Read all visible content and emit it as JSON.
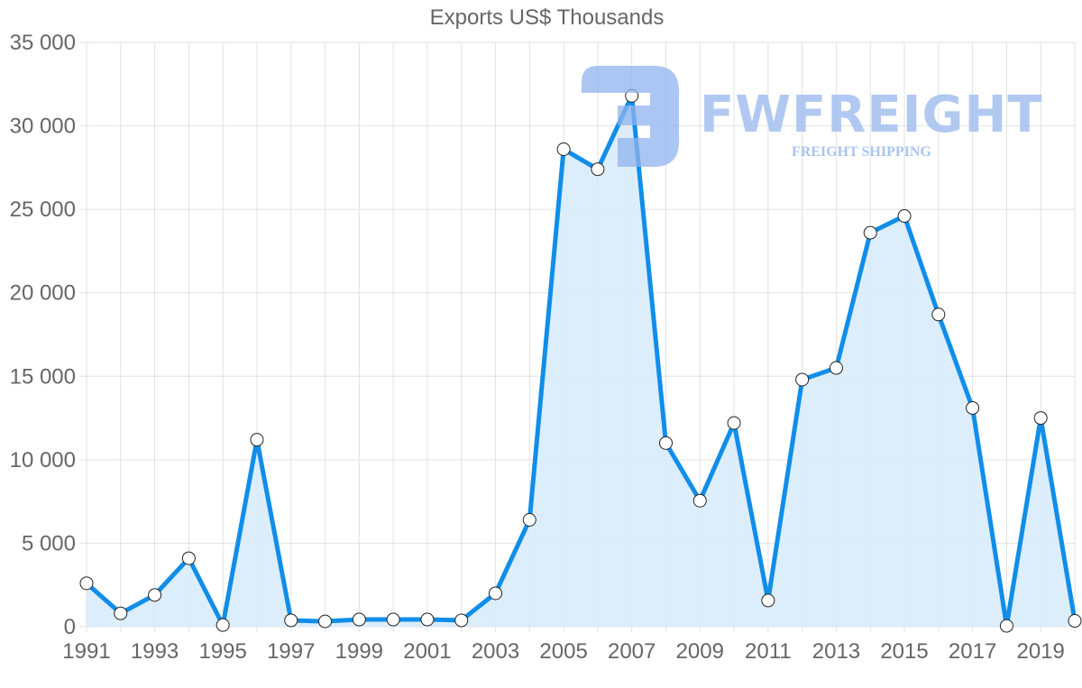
{
  "chart_data": {
    "type": "line",
    "title": "Exports US$ Thousands",
    "xlabel": "",
    "ylabel": "",
    "ylim": [
      0,
      35000
    ],
    "yticks": [
      0,
      5000,
      10000,
      15000,
      20000,
      25000,
      30000,
      35000
    ],
    "ytick_labels": [
      "0",
      "5 000",
      "10 000",
      "15 000",
      "20 000",
      "25 000",
      "30 000",
      "35 000"
    ],
    "xtick_labels": [
      "1991",
      "1993",
      "1995",
      "1997",
      "1999",
      "2001",
      "2003",
      "2005",
      "2007",
      "2009",
      "2011",
      "2013",
      "2015",
      "2017",
      "2019"
    ],
    "grid": true,
    "legend": null,
    "fill": true,
    "x": [
      1991,
      1992,
      1993,
      1994,
      1995,
      1996,
      1997,
      1998,
      1999,
      2000,
      2001,
      2002,
      2003,
      2004,
      2005,
      2006,
      2007,
      2008,
      2009,
      2010,
      2011,
      2012,
      2013,
      2014,
      2015,
      2016,
      2017,
      2018,
      2019,
      2020
    ],
    "series": [
      {
        "name": "Exports",
        "color": "#108ee9",
        "fill_color": "#d8ebfb",
        "values": [
          2600,
          800,
          1900,
          4100,
          100,
          11200,
          380,
          320,
          430,
          430,
          430,
          380,
          2000,
          6400,
          28600,
          27400,
          31800,
          11000,
          7550,
          12200,
          1570,
          14800,
          15500,
          23600,
          24600,
          18700,
          13100,
          50,
          12500,
          350
        ]
      }
    ]
  },
  "watermark": {
    "brand": "FWFREIGHT",
    "tagline": "FREIGHT SHIPPING"
  }
}
